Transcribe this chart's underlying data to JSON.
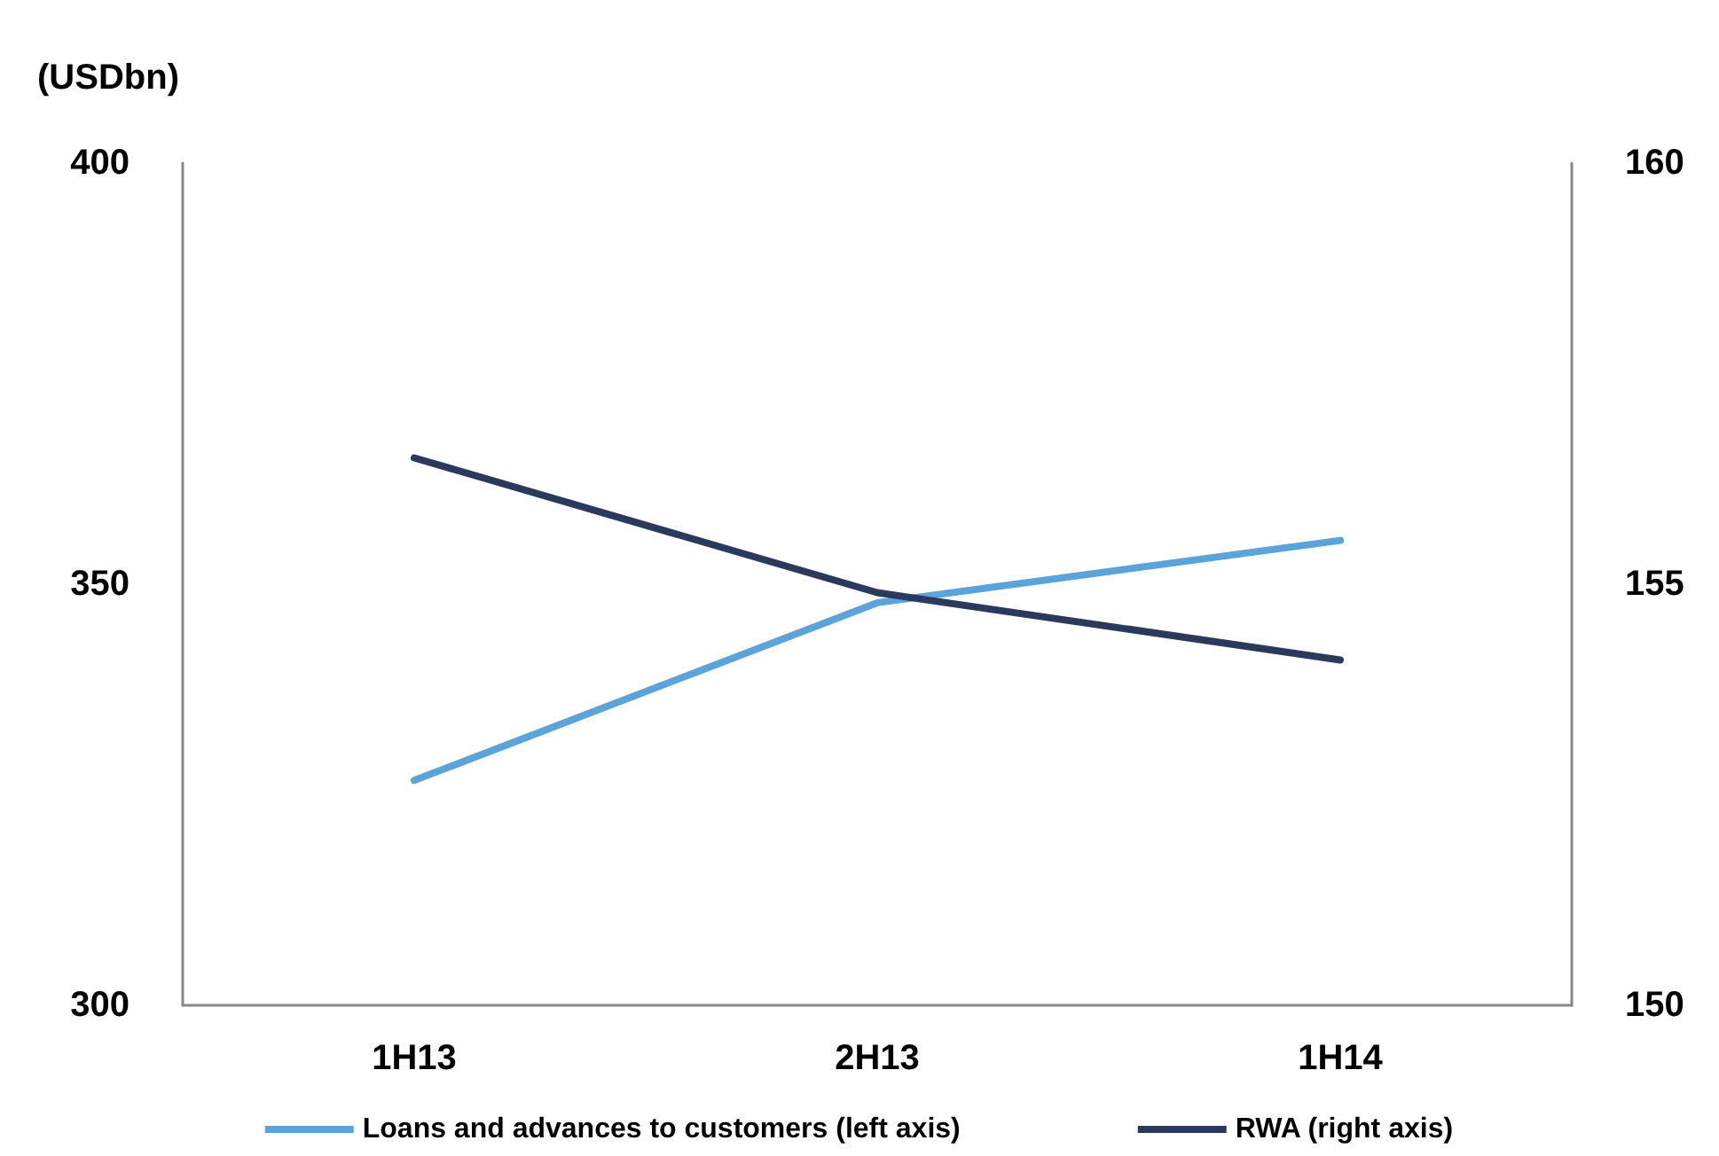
{
  "chart_data": {
    "type": "line",
    "ylabel": "(USDbn)",
    "categories": [
      "1H13",
      "2H13",
      "1H14"
    ],
    "series": [
      {
        "name": "Loans and advances to customers (left axis)",
        "color": "#5ba3d9",
        "values": [
          326.7,
          347.8,
          355.2
        ]
      },
      {
        "name": "RWA (right axis)",
        "color": "#2b3a5c",
        "values": [
          156.5,
          154.9,
          154.1
        ],
        "axis": "y2"
      }
    ],
    "ylim": [
      300,
      400
    ],
    "yticks": [
      300,
      350,
      400
    ],
    "y2lim": [
      150,
      160
    ],
    "y2ticks": [
      150,
      155,
      160
    ],
    "grid": false,
    "legend": "bottom",
    "marker": "none",
    "line_style": "solid"
  }
}
